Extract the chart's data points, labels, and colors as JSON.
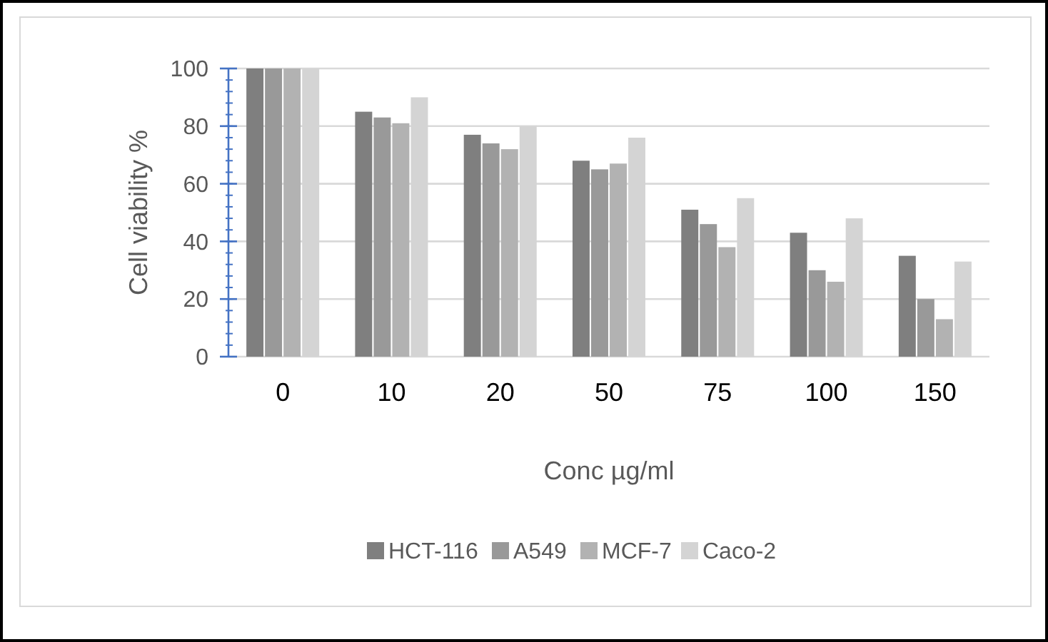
{
  "chart_data": {
    "type": "bar",
    "xlabel": "Conc µg/ml",
    "ylabel": "Cell viability %",
    "categories": [
      "0",
      "10",
      "20",
      "50",
      "75",
      "100",
      "150"
    ],
    "series": [
      {
        "name": "HCT-116",
        "color": "#7f7f7f",
        "values": [
          100,
          85,
          77,
          68,
          51,
          43,
          35
        ]
      },
      {
        "name": "A549",
        "color": "#999999",
        "values": [
          100,
          83,
          74,
          65,
          46,
          30,
          20
        ]
      },
      {
        "name": "MCF-7",
        "color": "#b2b2b2",
        "values": [
          100,
          81,
          72,
          67,
          38,
          26,
          13
        ]
      },
      {
        "name": "Caco-2",
        "color": "#d4d4d4",
        "values": [
          100,
          90,
          80,
          76,
          55,
          48,
          33
        ]
      }
    ],
    "ylim": [
      0,
      100
    ],
    "yticks": [
      0,
      20,
      40,
      60,
      80,
      100
    ],
    "grid": "y",
    "legend": "bottom"
  }
}
